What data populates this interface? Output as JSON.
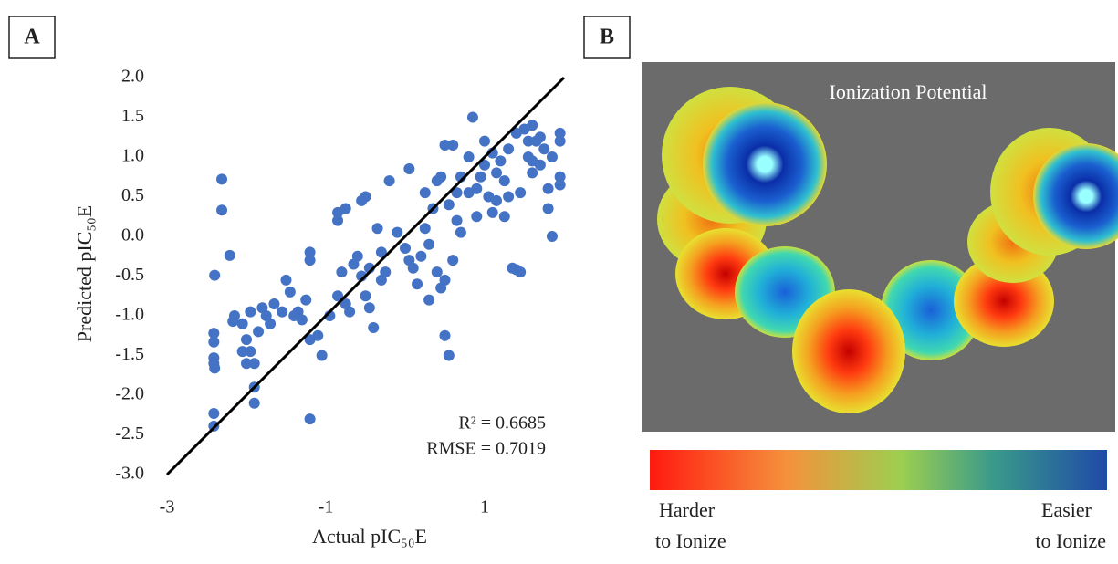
{
  "chart_data": {
    "type": "scatter",
    "panel_label": "A",
    "x_label": "Actual pIC₅₀E",
    "y_label": "Predicted pIC₅₀E",
    "annotations": [
      "R² = 0.6685",
      "RMSE = 0.7019"
    ],
    "color": "#4472c4",
    "xlim": [
      -3,
      2
    ],
    "xticks": [
      -3,
      -1,
      1
    ],
    "ylim": [
      -3,
      2
    ],
    "yticks": [
      {
        "value": 2,
        "label": "2.0"
      },
      1.5,
      {
        "value": 1,
        "label": "1.0"
      },
      0.5,
      {
        "value": 0,
        "label": "0.0"
      },
      -0.5,
      {
        "value": -1,
        "label": "-1.0"
      },
      -1.5,
      {
        "value": -2,
        "label": "-2.0"
      },
      -2.5,
      {
        "value": -3,
        "label": "-3.0"
      }
    ],
    "x": [
      -2.31,
      -2.31,
      -2.21,
      -2.4,
      -2.41,
      -2.41,
      -2.41,
      -2.41,
      -2.4,
      -2.41,
      -2.41,
      -2.17,
      -2.15,
      -2.05,
      -2.0,
      -1.95,
      -1.9,
      -1.95,
      -1.85,
      -1.8,
      -1.75,
      -1.7,
      -1.65,
      -1.55,
      -1.5,
      -1.45,
      -1.4,
      -1.35,
      -1.3,
      -1.25,
      -1.2,
      -1.2,
      -1.2,
      -1.1,
      -1.05,
      -1.9,
      -1.9,
      -1.2,
      -2.05,
      -2.0,
      -0.95,
      -0.85,
      -0.8,
      -0.75,
      -0.7,
      -0.65,
      -0.6,
      -0.55,
      -0.5,
      -0.45,
      -0.4,
      -0.85,
      -0.75,
      -0.55,
      -0.5,
      -0.35,
      -0.3,
      -0.3,
      -0.25,
      -0.2,
      -0.1,
      -0.85,
      -0.45,
      0.05,
      0,
      0.05,
      0.1,
      0.15,
      0.2,
      0.25,
      0.25,
      0.3,
      0.35,
      0.4,
      0.45,
      0.5,
      0.5,
      0.55,
      0.6,
      0.6,
      0.5,
      0.55,
      0.3,
      0.4,
      0.45,
      0.65,
      0.65,
      0.7,
      0.7,
      0.8,
      0.8,
      0.85,
      0.9,
      0.95,
      1.0,
      1.05,
      1.1,
      1.15,
      1.2,
      1.25,
      1.3,
      1.3,
      1.35,
      1.4,
      1.45,
      1.4,
      1.45,
      1.5,
      1.55,
      1.6,
      1.6,
      1.65,
      1.7,
      1.7,
      1.75,
      1.8,
      1.8,
      1.85,
      1.85,
      1.95,
      1.95,
      1.95,
      1.95,
      1.55,
      1.6,
      1.1,
      0.9,
      1.0,
      1.15,
      1.25
    ],
    "values": [
      0.72,
      0.33,
      -0.24,
      -0.49,
      -1.22,
      -1.33,
      -1.53,
      -1.6,
      -1.66,
      -2.23,
      -2.39,
      -1.07,
      -1.0,
      -1.1,
      -1.3,
      -1.45,
      -1.6,
      -0.95,
      -1.2,
      -0.9,
      -1.0,
      -1.1,
      -0.85,
      -0.95,
      -0.55,
      -0.7,
      -1.0,
      -0.95,
      -1.05,
      -0.8,
      -0.2,
      -0.3,
      -1.3,
      -1.25,
      -1.5,
      -1.9,
      -2.1,
      -2.3,
      -1.45,
      -1.6,
      -1.0,
      -0.75,
      -0.45,
      -0.85,
      -0.95,
      -0.35,
      -0.25,
      -0.5,
      -0.75,
      -0.9,
      -1.15,
      0.2,
      0.35,
      0.45,
      0.5,
      0.1,
      -0.2,
      -0.55,
      -0.45,
      0.7,
      0.05,
      0.3,
      -0.4,
      0.85,
      -0.15,
      -0.3,
      -0.4,
      -0.6,
      -0.25,
      0.1,
      0.55,
      -0.1,
      0.35,
      -0.45,
      -0.65,
      -0.55,
      1.15,
      0.4,
      -0.3,
      1.15,
      -1.25,
      -1.5,
      -0.8,
      0.7,
      0.75,
      0.2,
      0.55,
      0.05,
      0.75,
      0.55,
      1.0,
      1.5,
      0.25,
      0.75,
      1.2,
      0.5,
      0.3,
      0.8,
      0.95,
      0.7,
      0.5,
      1.1,
      -0.4,
      -0.42,
      -0.45,
      1.3,
      0.55,
      1.35,
      1.0,
      1.4,
      0.8,
      1.2,
      1.25,
      0.9,
      1.1,
      0.6,
      0.35,
      1.0,
      0.0,
      1.3,
      1.2,
      0.75,
      0.65,
      1.2,
      0.95,
      1.05,
      0.6,
      0.9,
      0.45,
      0.25
    ]
  },
  "panel_b": {
    "panel_label": "B",
    "title": "Ionization Potential",
    "left_label": [
      "Harder",
      "to Ionize"
    ],
    "right_label": [
      "Easier",
      "to Ionize"
    ]
  }
}
